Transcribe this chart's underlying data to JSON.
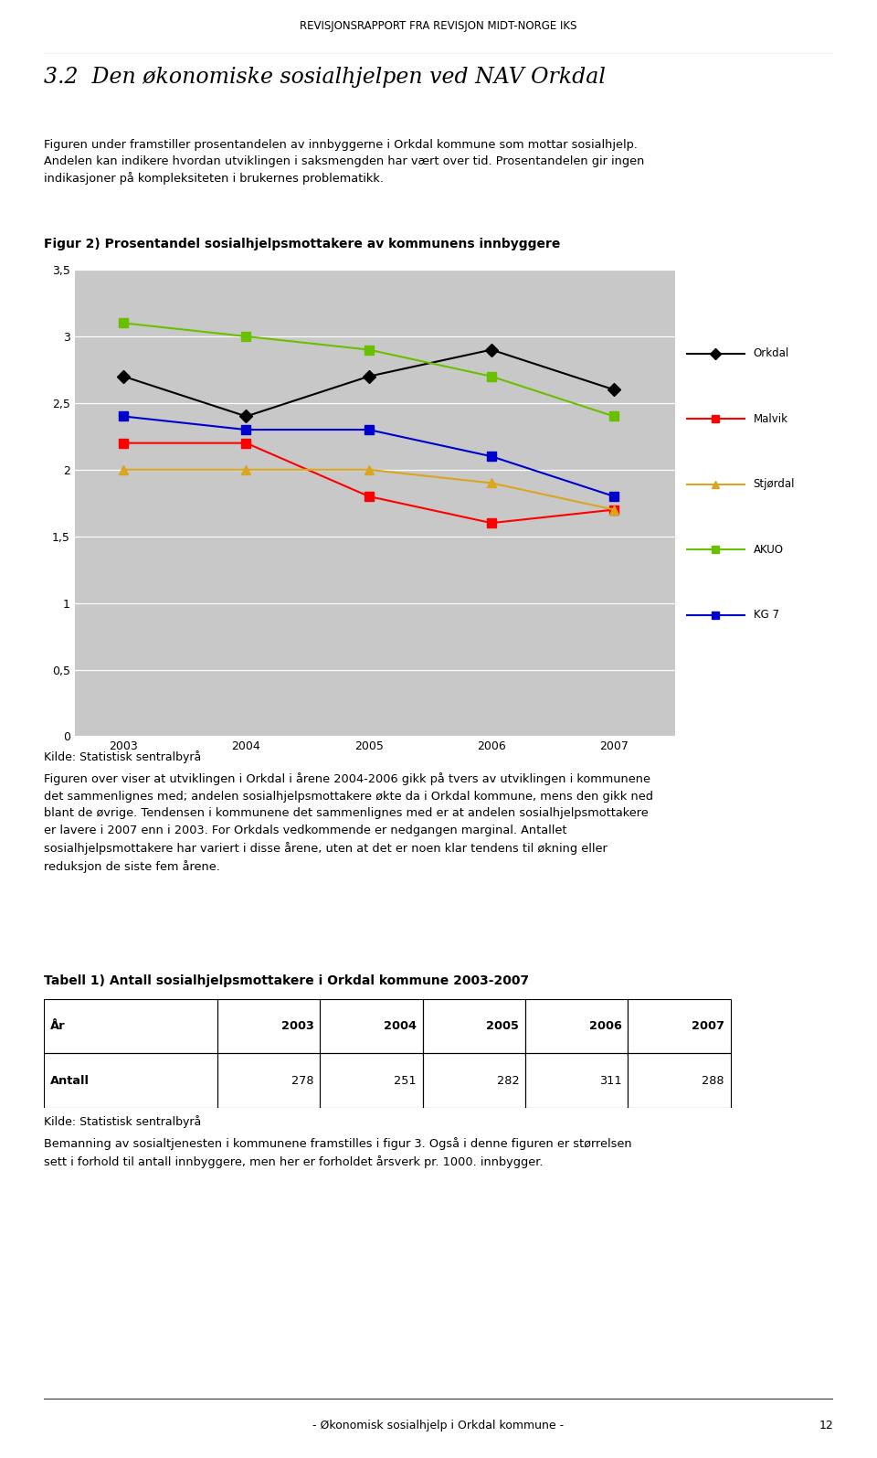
{
  "header": "REVISJONSRAPPORT FRA REVISJON MIDT-NORGE IKS",
  "section_title": "3.2  Den økonomiske sosialhjelpen ved NAV Orkdal",
  "intro_line1": "Figuren under framstiller prosentandelen av innbyggerne i Orkdal kommune som mottar sosialhjelp.",
  "intro_line2": "Andelen kan indikere hvordan utviklingen i saksmengden har vært over tid. Prosentandelen gir ingen",
  "intro_line3": "indikasjoner på kompleksiteten i brukernes problematikk.",
  "chart_title": "Figur 2) Prosentandel sosialhjelpsmottakere av kommunens innbyggere",
  "years": [
    2003,
    2004,
    2005,
    2006,
    2007
  ],
  "series": [
    {
      "name": "Orkdal",
      "color": "#000000",
      "marker": "D",
      "values": [
        2.7,
        2.4,
        2.7,
        2.9,
        2.6
      ]
    },
    {
      "name": "Malvik",
      "color": "#FF0000",
      "marker": "s",
      "values": [
        2.2,
        2.2,
        1.8,
        1.6,
        1.7
      ]
    },
    {
      "name": "Stjørdal",
      "color": "#DAA520",
      "marker": "^",
      "values": [
        2.0,
        2.0,
        2.0,
        1.9,
        1.7
      ]
    },
    {
      "name": "AKUO",
      "color": "#6ABF00",
      "marker": "s",
      "values": [
        3.1,
        3.0,
        2.9,
        2.7,
        2.4
      ]
    },
    {
      "name": "KG 7",
      "color": "#0000CD",
      "marker": "s",
      "values": [
        2.4,
        2.3,
        2.3,
        2.1,
        1.8
      ]
    }
  ],
  "ylim": [
    0,
    3.5
  ],
  "yticks": [
    0,
    0.5,
    1,
    1.5,
    2,
    2.5,
    3,
    3.5
  ],
  "ytick_labels": [
    "0",
    "0,5",
    "1",
    "1,5",
    "2",
    "2,5",
    "3",
    "3,5"
  ],
  "chart_bg": "#C8C8C8",
  "source_text": "Kilde: Statistisk sentralbyrå",
  "body_line1": "Figuren over viser at utviklingen i Orkdal i årene 2004-2006 gikk på tvers av utviklingen i kommunene",
  "body_line2": "det sammenlignes med; andelen sosialhjelpsmottakere økte da i Orkdal kommune, mens den gikk ned",
  "body_line3": "blant de øvrige. Tendensen i kommunene det sammenlignes med er at andelen sosialhjelpsmottakere",
  "body_line4": "er lavere i 2007 enn i 2003. For Orkdals vedkommende er nedgangen marginal. Antallet",
  "body_line5": "sosialhjelpsmottakere har variert i disse årene, uten at det er noen klar tendens til økning eller",
  "body_line6": "reduksjon de siste fem årene.",
  "table_title": "Tabell 1) Antall sosialhjelpsmottakere i Orkdal kommune 2003-2007",
  "table_header": [
    "År",
    "2003",
    "2004",
    "2005",
    "2006",
    "2007"
  ],
  "table_row": [
    "Antall",
    "278",
    "251",
    "282",
    "311",
    "288"
  ],
  "table_source": "Kilde: Statistisk sentralbyrå",
  "footer_line1": "Bemanning av sosialtjenesten i kommunene framstilles i figur 3. Også i denne figuren er størrelsen",
  "footer_line2": "sett i forhold til antall innbyggere, men her er forholdet årsverk pr. 1000. innbygger.",
  "page_footer": "- Økonomisk sosialhjelp i Orkdal kommune -",
  "page_number": "12"
}
